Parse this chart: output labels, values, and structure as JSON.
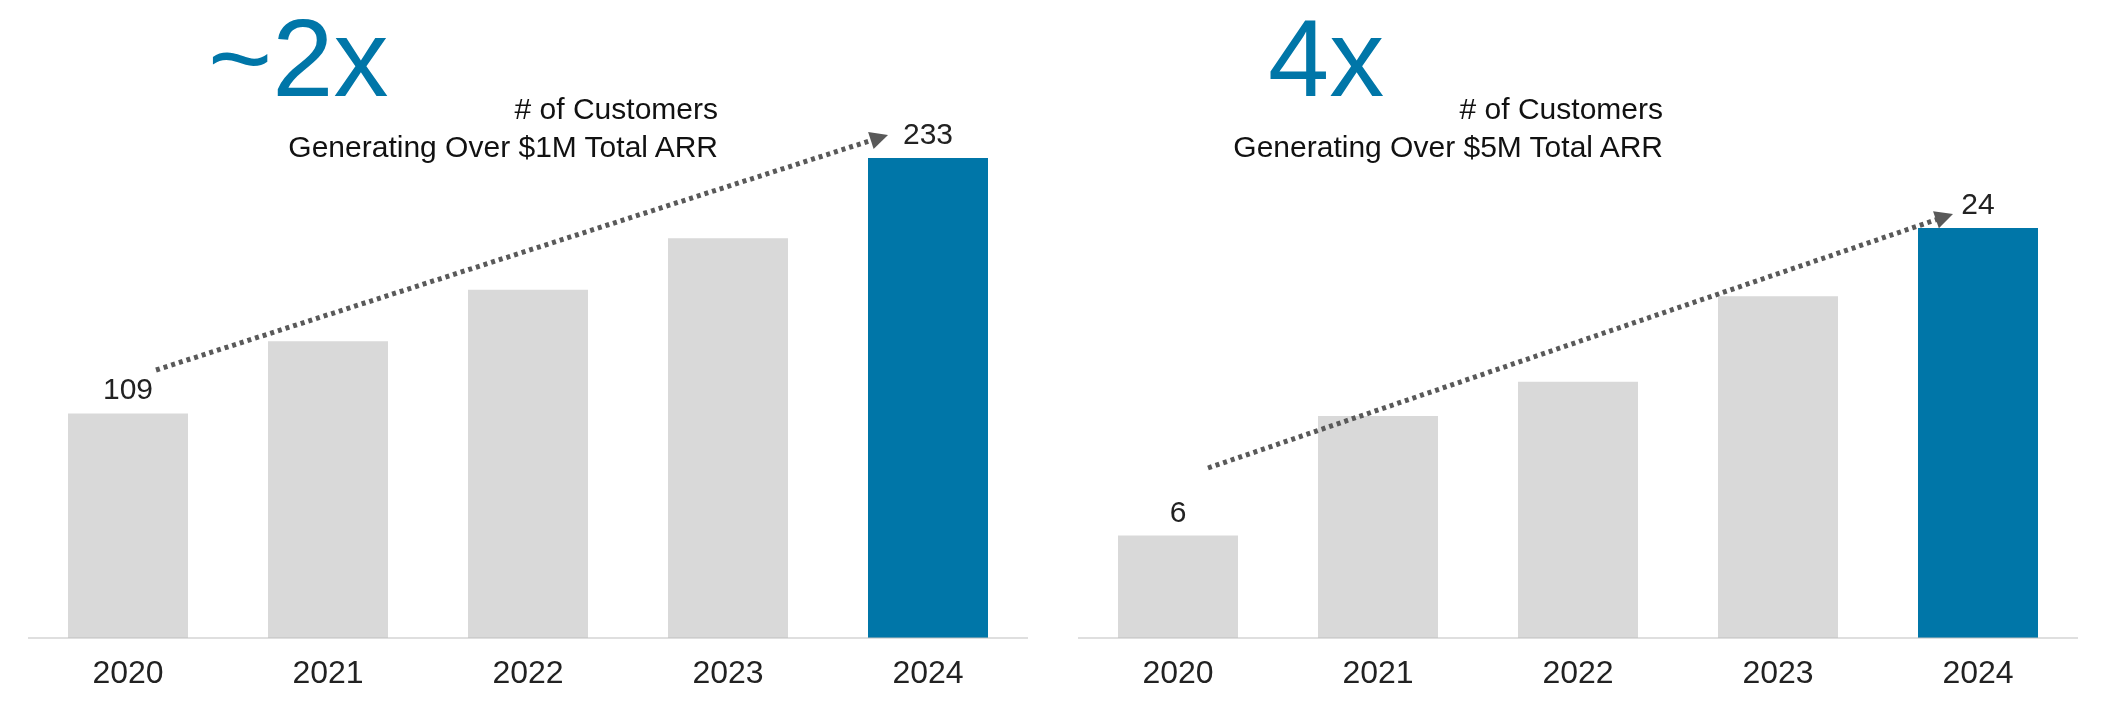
{
  "chart_data": [
    {
      "type": "bar",
      "title": "~2x",
      "subtitle": "# of Customers\nGenerating Over $1M Total ARR",
      "categories": [
        "2020",
        "2021",
        "2022",
        "2023",
        "2024"
      ],
      "values": [
        109,
        144,
        169,
        194,
        233
      ],
      "value_labels": [
        "109",
        null,
        null,
        null,
        "233"
      ],
      "colors": [
        "#d9d9d9",
        "#d9d9d9",
        "#d9d9d9",
        "#d9d9d9",
        "#0076a8"
      ]
    },
    {
      "type": "bar",
      "title": "4x",
      "subtitle": "# of Customers\nGenerating Over $5M Total ARR",
      "categories": [
        "2020",
        "2021",
        "2022",
        "2023",
        "2024"
      ],
      "values": [
        6,
        13,
        15,
        20,
        24
      ],
      "value_labels": [
        "6",
        null,
        null,
        null,
        "24"
      ],
      "colors": [
        "#d9d9d9",
        "#d9d9d9",
        "#d9d9d9",
        "#d9d9d9",
        "#0076a8"
      ]
    }
  ]
}
